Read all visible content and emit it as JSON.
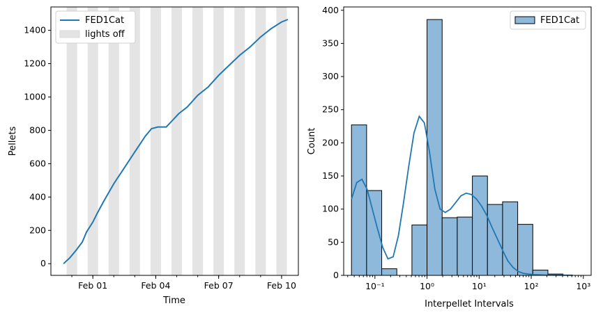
{
  "colors": {
    "line": "#1f77b4",
    "bar_fill": "#8fb9da",
    "shade": "#e4e4e4",
    "axis": "#000000"
  },
  "chart_data": [
    {
      "type": "line",
      "xlabel": "Time",
      "ylabel": "Pellets",
      "x_tick_labels": [
        "Feb 01",
        "Feb 04",
        "Feb 07",
        "Feb 10"
      ],
      "y_ticks": [
        0,
        200,
        400,
        600,
        800,
        1000,
        1200,
        1400
      ],
      "x_range_days": [
        -1.5,
        10.3
      ],
      "ylim": [
        -70,
        1540
      ],
      "legend": {
        "position": "top-left",
        "entries": [
          "FED1Cat",
          "lights off"
        ]
      },
      "series": [
        {
          "name": "FED1Cat",
          "x": [
            -0.9,
            -0.6,
            -0.3,
            0.0,
            0.2,
            0.5,
            0.7,
            1.0,
            1.5,
            2.0,
            2.5,
            3.0,
            3.3,
            3.6,
            4.0,
            4.3,
            4.6,
            5.0,
            5.5,
            6.0,
            6.5,
            7.0,
            7.5,
            8.0,
            8.5,
            9.0,
            9.5,
            9.8
          ],
          "y": [
            0,
            35,
            80,
            130,
            190,
            250,
            300,
            370,
            480,
            575,
            670,
            765,
            810,
            820,
            820,
            860,
            900,
            940,
            1010,
            1060,
            1130,
            1190,
            1250,
            1300,
            1360,
            1410,
            1450,
            1465
          ]
        }
      ],
      "lights_off_intervals": [
        [
          -0.75,
          -0.25
        ],
        [
          0.25,
          0.75
        ],
        [
          1.25,
          1.75
        ],
        [
          2.25,
          2.75
        ],
        [
          3.25,
          3.75
        ],
        [
          4.25,
          4.75
        ],
        [
          5.25,
          5.75
        ],
        [
          6.25,
          6.75
        ],
        [
          7.25,
          7.75
        ],
        [
          8.25,
          8.75
        ],
        [
          9.25,
          9.75
        ]
      ]
    },
    {
      "type": "bar",
      "xlabel": "Interpellet Intervals",
      "ylabel": "Count",
      "x_scale": "log",
      "x_tick_labels": [
        "10⁻¹",
        "10⁰",
        "10¹",
        "10²",
        "10³"
      ],
      "x_tick_values": [
        -1,
        0,
        1,
        2,
        3
      ],
      "y_ticks": [
        0,
        50,
        100,
        150,
        200,
        250,
        300,
        350,
        400
      ],
      "xlim_log10": [
        -1.6,
        3.15
      ],
      "ylim": [
        0,
        405
      ],
      "legend": {
        "position": "top-right",
        "entries": [
          "FED1Cat"
        ]
      },
      "bins_log10": [
        -1.45,
        -1.16,
        -0.87,
        -0.58,
        -0.29,
        0.0,
        0.29,
        0.58,
        0.87,
        1.16,
        1.45,
        1.74,
        2.03,
        2.32,
        2.61
      ],
      "counts": [
        227,
        128,
        10,
        0,
        76,
        386,
        87,
        88,
        150,
        107,
        111,
        77,
        8,
        2
      ],
      "kde": {
        "x_log10": [
          -1.45,
          -1.35,
          -1.25,
          -1.15,
          -1.05,
          -0.95,
          -0.85,
          -0.75,
          -0.65,
          -0.55,
          -0.45,
          -0.35,
          -0.25,
          -0.15,
          -0.05,
          0.05,
          0.15,
          0.25,
          0.35,
          0.45,
          0.55,
          0.65,
          0.75,
          0.85,
          0.95,
          1.05,
          1.15,
          1.25,
          1.35,
          1.45,
          1.55,
          1.65,
          1.75,
          1.85,
          1.95,
          2.05,
          2.25,
          2.5,
          2.8
        ],
        "y": [
          115,
          140,
          145,
          130,
          100,
          70,
          42,
          25,
          28,
          60,
          110,
          165,
          215,
          240,
          230,
          185,
          130,
          100,
          95,
          100,
          110,
          120,
          124,
          122,
          115,
          104,
          90,
          72,
          55,
          38,
          22,
          12,
          6,
          3,
          2,
          1,
          0.5,
          0.3,
          0.2
        ]
      }
    }
  ]
}
